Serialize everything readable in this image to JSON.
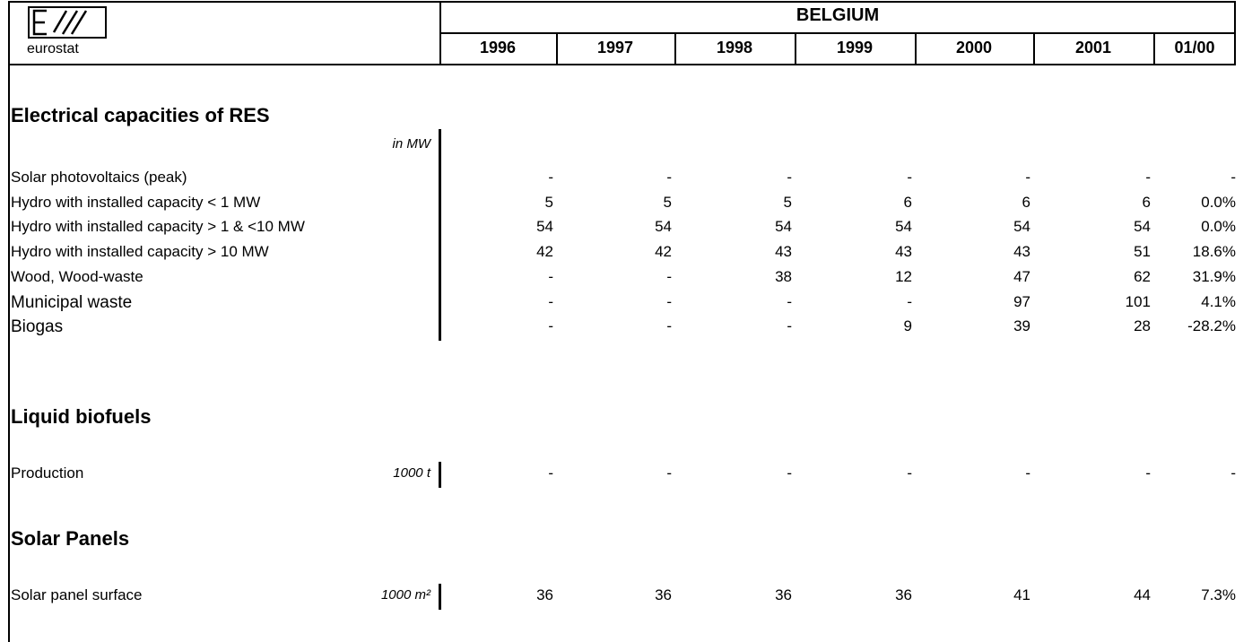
{
  "header": {
    "logo_text": "eurostat",
    "country": "BELGIUM",
    "columns": [
      "1996",
      "1997",
      "1998",
      "1999",
      "2000",
      "2001",
      "01/00"
    ]
  },
  "sections": [
    {
      "title": "Electrical capacities of RES",
      "unit": "in MW",
      "rows": [
        {
          "label": "Solar photovoltaics (peak)",
          "values": [
            "-",
            "-",
            "-",
            "-",
            "-",
            "-",
            "-"
          ]
        },
        {
          "label": "Hydro with installed capacity < 1 MW",
          "values": [
            "5",
            "5",
            "5",
            "6",
            "6",
            "6",
            "0.0%"
          ]
        },
        {
          "label": "Hydro with installed capacity > 1 & <10 MW",
          "values": [
            "54",
            "54",
            "54",
            "54",
            "54",
            "54",
            "0.0%"
          ]
        },
        {
          "label": "Hydro with installed capacity > 10 MW",
          "values": [
            "42",
            "42",
            "43",
            "43",
            "43",
            "51",
            "18.6%"
          ]
        },
        {
          "label": "Wood, Wood-waste",
          "values": [
            "-",
            "-",
            "38",
            "12",
            "47",
            "62",
            "31.9%"
          ]
        },
        {
          "label": "Municipal waste",
          "values": [
            "-",
            "-",
            "-",
            "-",
            "97",
            "101",
            "4.1%"
          ]
        },
        {
          "label": "Biogas",
          "values": [
            "-",
            "-",
            "-",
            "9",
            "39",
            "28",
            "-28.2%"
          ]
        }
      ]
    },
    {
      "title": "Liquid biofuels",
      "rows": [
        {
          "label": "Production",
          "unit": "1000 t",
          "values": [
            "-",
            "-",
            "-",
            "-",
            "-",
            "-",
            "-"
          ]
        }
      ]
    },
    {
      "title": "Solar Panels",
      "rows": [
        {
          "label": "Solar panel surface",
          "unit": "1000 m²",
          "values": [
            "36",
            "36",
            "36",
            "36",
            "41",
            "44",
            "7.3%"
          ]
        }
      ]
    }
  ]
}
